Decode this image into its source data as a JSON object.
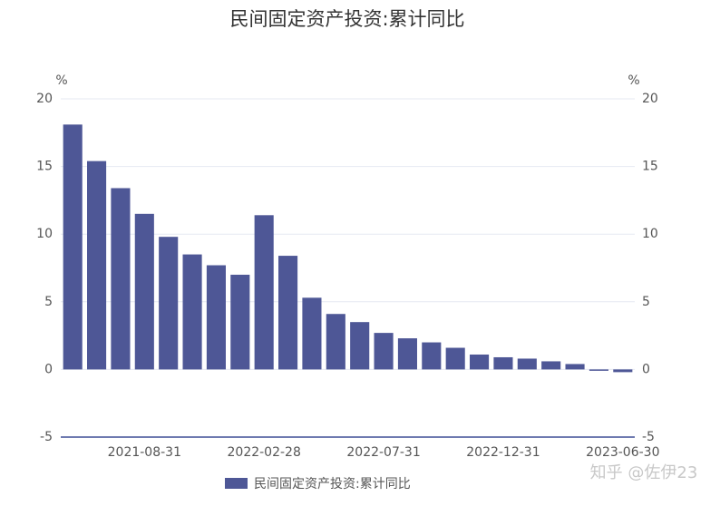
{
  "chart_data": {
    "type": "bar",
    "title": "民间固定资产投资:累计同比",
    "y_label": "%",
    "y2_label": "%",
    "categories": [
      null,
      null,
      null,
      "2021-08-31",
      null,
      null,
      null,
      null,
      "2022-02-28",
      null,
      null,
      null,
      null,
      "2022-07-31",
      null,
      null,
      null,
      null,
      "2022-12-31",
      null,
      null,
      null,
      null,
      "2023-06-30"
    ],
    "series": [
      {
        "name": "民间固定资产投资:累计同比",
        "color": "#4e5796",
        "values": [
          18.1,
          15.4,
          13.4,
          11.5,
          9.8,
          8.5,
          7.7,
          7.0,
          11.4,
          8.4,
          5.3,
          4.1,
          3.5,
          2.7,
          2.3,
          2.0,
          1.6,
          1.1,
          0.9,
          0.8,
          0.6,
          0.4,
          -0.1,
          -0.2
        ]
      }
    ],
    "ylim": [
      -5,
      20
    ],
    "yticks": [
      -5,
      0,
      5,
      10,
      15,
      20
    ],
    "y2lim": [
      -5,
      20
    ],
    "y2ticks": [
      -5,
      0,
      5,
      10,
      15,
      20
    ],
    "grid": true,
    "legend": "bottom",
    "watermark": "知乎 @佐伊23"
  }
}
